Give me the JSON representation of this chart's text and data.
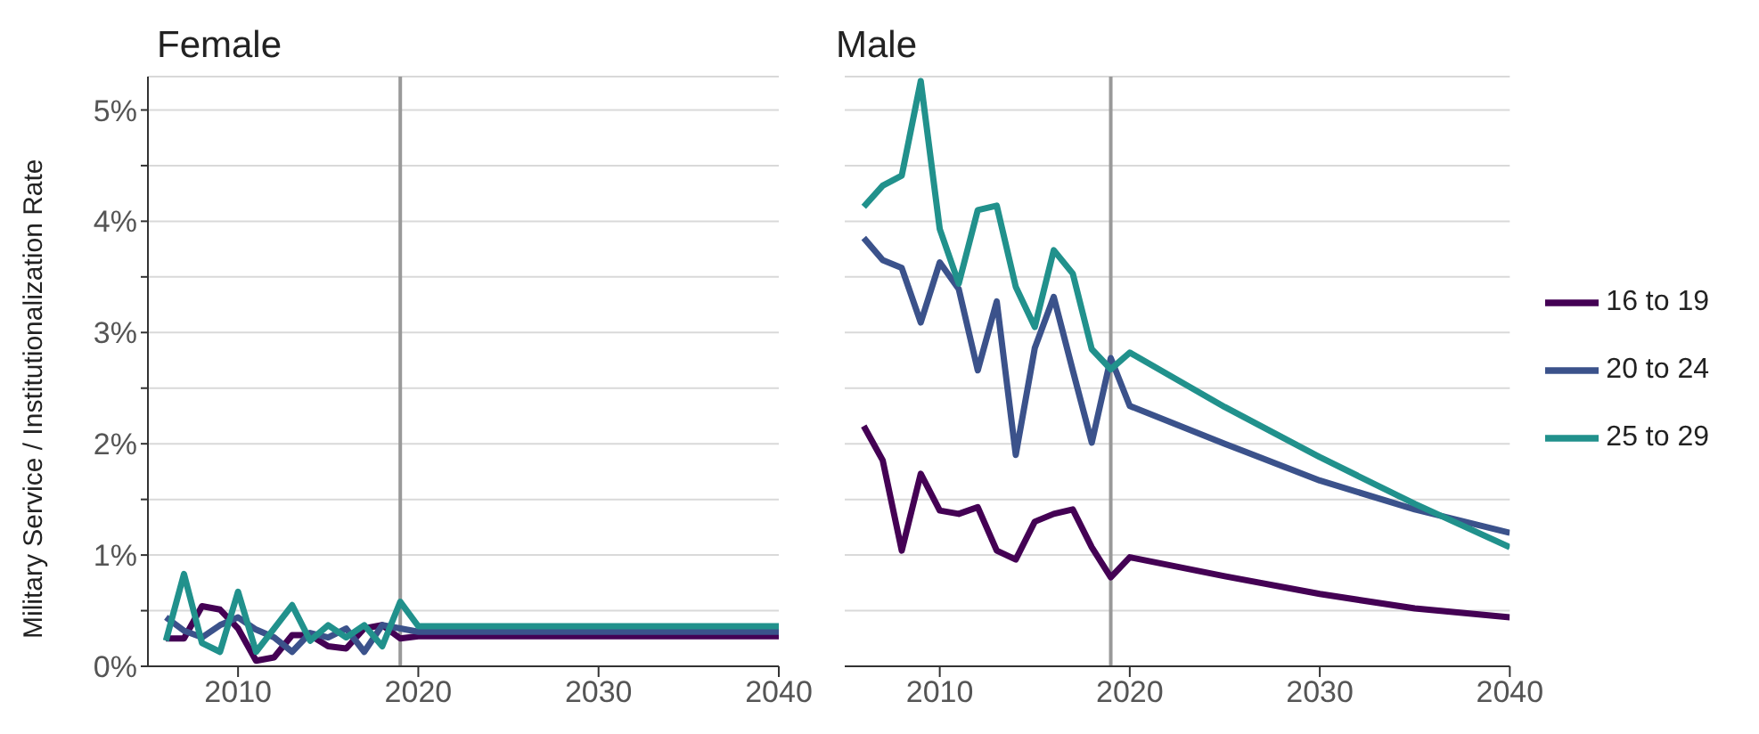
{
  "chart_data": [
    {
      "type": "line",
      "title": "Female",
      "ylabel": "Military Service / Institutionalization Rate",
      "x": [
        2006,
        2007,
        2008,
        2009,
        2010,
        2011,
        2012,
        2013,
        2014,
        2015,
        2016,
        2017,
        2018,
        2019,
        2020,
        2025,
        2030,
        2035,
        2040
      ],
      "series": [
        {
          "color": "#440154",
          "values": [
            0.25,
            0.25,
            0.54,
            0.51,
            0.34,
            0.05,
            0.08,
            0.28,
            0.28,
            0.18,
            0.16,
            0.34,
            0.37,
            0.25,
            0.27,
            0.27,
            0.27,
            0.27,
            0.27
          ]
        },
        {
          "color": "#3b528b",
          "values": [
            0.44,
            0.32,
            0.26,
            0.37,
            0.44,
            0.33,
            0.26,
            0.13,
            0.3,
            0.26,
            0.34,
            0.13,
            0.37,
            0.34,
            0.31,
            0.31,
            0.31,
            0.31,
            0.31
          ]
        },
        {
          "color": "#21918c",
          "values": [
            0.23,
            0.83,
            0.21,
            0.13,
            0.67,
            0.13,
            0.34,
            0.55,
            0.23,
            0.37,
            0.26,
            0.37,
            0.18,
            0.58,
            0.36,
            0.36,
            0.36,
            0.36,
            0.36
          ]
        }
      ],
      "xlim": [
        2005,
        2040
      ],
      "xticks": [
        2010,
        2020,
        2030,
        2040
      ],
      "ylim": [
        0,
        5.3
      ],
      "yticks": [
        {
          "value": 0,
          "label": "0%"
        },
        {
          "value": 0.5,
          "label": null
        },
        {
          "value": 1,
          "label": "1%"
        },
        {
          "value": 1.5,
          "label": null
        },
        {
          "value": 2,
          "label": "2%"
        },
        {
          "value": 2.5,
          "label": null
        },
        {
          "value": 3,
          "label": "3%"
        },
        {
          "value": 3.5,
          "label": null
        },
        {
          "value": 4,
          "label": "4%"
        },
        {
          "value": 4.5,
          "label": null
        },
        {
          "value": 5,
          "label": "5%"
        }
      ],
      "grid": "y",
      "legend": false,
      "ref_lines": [
        {
          "axis": "x",
          "value": 2019,
          "color": "#999999"
        }
      ]
    },
    {
      "type": "line",
      "title": "Male",
      "x": [
        2006,
        2007,
        2008,
        2009,
        2010,
        2011,
        2012,
        2013,
        2014,
        2015,
        2016,
        2017,
        2018,
        2019,
        2020,
        2025,
        2030,
        2035,
        2040
      ],
      "series": [
        {
          "name": "16 to 19",
          "color": "#440154",
          "values": [
            2.16,
            1.85,
            1.04,
            1.73,
            1.4,
            1.37,
            1.43,
            1.04,
            0.96,
            1.3,
            1.37,
            1.41,
            1.07,
            0.8,
            0.98,
            0.81,
            0.65,
            0.52,
            0.44
          ]
        },
        {
          "name": "20 to 24",
          "color": "#3b528b",
          "values": [
            3.85,
            3.65,
            3.58,
            3.09,
            3.63,
            3.39,
            2.66,
            3.28,
            1.9,
            2.86,
            3.32,
            2.66,
            2.01,
            2.77,
            2.34,
            2.0,
            1.67,
            1.41,
            1.2
          ]
        },
        {
          "name": "25 to 29",
          "color": "#21918c",
          "values": [
            4.13,
            4.32,
            4.41,
            5.26,
            3.93,
            3.44,
            4.1,
            4.14,
            3.41,
            3.05,
            3.74,
            3.53,
            2.85,
            2.67,
            2.82,
            2.33,
            1.88,
            1.46,
            1.07
          ]
        }
      ],
      "xlim": [
        2005,
        2040
      ],
      "xticks": [
        2010,
        2020,
        2030,
        2040
      ],
      "ylim": [
        0,
        5.3
      ],
      "yticks": [
        0,
        0.5,
        1,
        1.5,
        2,
        2.5,
        3,
        3.5,
        4,
        4.5,
        5
      ],
      "grid": "y",
      "legend": "right",
      "tick_labels": "x",
      "ref_lines": [
        {
          "axis": "x",
          "value": 2019,
          "color": "#999999"
        }
      ]
    }
  ]
}
